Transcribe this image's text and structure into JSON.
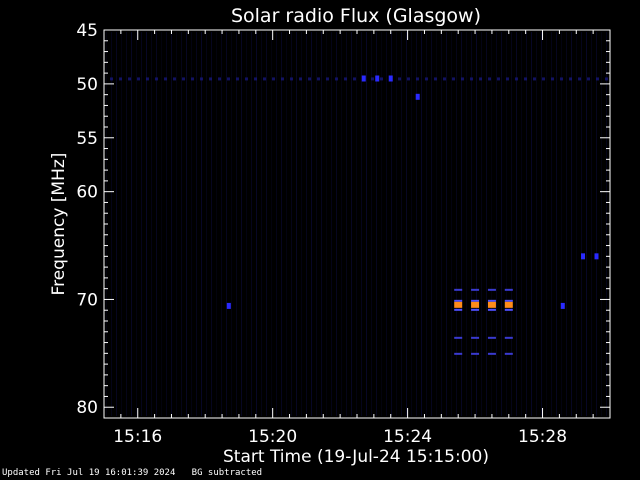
{
  "chart_data": {
    "type": "heatmap",
    "title": "Solar radio Flux (Glasgow)",
    "xlabel": "Start Time (19-Jul-24 15:15:00)",
    "ylabel": "Frequency [MHz]",
    "x_start_minutes": 0,
    "x_end_minutes": 15,
    "x_tick_minutes": [
      1,
      5,
      9,
      13
    ],
    "x_tick_labels": [
      "15:16",
      "15:20",
      "15:24",
      "15:28"
    ],
    "y_range_mhz": [
      45,
      81
    ],
    "y_ticks": [
      45,
      50,
      55,
      60,
      70,
      80
    ],
    "y_tick_labels": [
      "45",
      "50",
      "55",
      "60",
      "70",
      "80"
    ],
    "background_color": "#000000",
    "low_intensity_color": "#1a1a8c",
    "high_intensity_color": "#ff8c1a",
    "bright_spots": [
      {
        "minute": 10.5,
        "freq_mhz": 70.5
      },
      {
        "minute": 11.0,
        "freq_mhz": 70.5
      },
      {
        "minute": 11.5,
        "freq_mhz": 70.5
      },
      {
        "minute": 12.0,
        "freq_mhz": 70.5
      }
    ],
    "weak_spots": [
      {
        "minute": 7.7,
        "freq_mhz": 49.5
      },
      {
        "minute": 8.1,
        "freq_mhz": 49.5
      },
      {
        "minute": 8.5,
        "freq_mhz": 49.5
      },
      {
        "minute": 9.3,
        "freq_mhz": 51.2
      },
      {
        "minute": 3.7,
        "freq_mhz": 70.6
      },
      {
        "minute": 13.6,
        "freq_mhz": 70.6
      },
      {
        "minute": 14.2,
        "freq_mhz": 66.0
      },
      {
        "minute": 14.6,
        "freq_mhz": 66.0
      }
    ]
  },
  "footer": {
    "updated": "Updated Fri Jul 19 16:01:39 2024",
    "note": "BG subtracted"
  }
}
